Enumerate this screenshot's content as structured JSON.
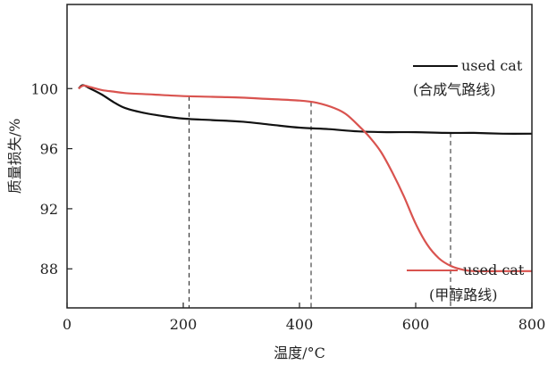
{
  "chart_data": {
    "type": "line",
    "xlabel": "温度/°C",
    "ylabel": "质量损失/%",
    "xlim": [
      0,
      800
    ],
    "ylim": [
      85.4,
      105.6
    ],
    "x_ticks": [
      0,
      200,
      400,
      600,
      800
    ],
    "y_ticks": [
      88,
      92,
      96,
      100
    ],
    "grid": false,
    "legend_position": "right",
    "series": [
      {
        "name": "used cat (合成气路线)",
        "color": "#111111",
        "x": [
          20,
          25,
          30,
          40,
          60,
          80,
          100,
          130,
          160,
          200,
          250,
          300,
          350,
          400,
          450,
          500,
          550,
          600,
          650,
          700,
          750,
          800
        ],
        "y": [
          100.0,
          100.2,
          100.2,
          100.0,
          99.6,
          99.1,
          98.7,
          98.4,
          98.2,
          98.0,
          97.9,
          97.8,
          97.6,
          97.4,
          97.3,
          97.15,
          97.1,
          97.1,
          97.05,
          97.05,
          97.0,
          97.0
        ]
      },
      {
        "name": "used cat (甲醇路线)",
        "color": "#d9534f",
        "x": [
          20,
          25,
          30,
          40,
          60,
          80,
          100,
          150,
          200,
          250,
          300,
          350,
          400,
          430,
          460,
          480,
          500,
          520,
          540,
          560,
          580,
          600,
          620,
          640,
          660,
          680,
          700,
          750,
          800
        ],
        "y": [
          100.0,
          100.15,
          100.2,
          100.1,
          99.9,
          99.8,
          99.7,
          99.6,
          99.5,
          99.45,
          99.4,
          99.3,
          99.2,
          99.05,
          98.7,
          98.3,
          97.6,
          96.8,
          95.8,
          94.4,
          92.8,
          91.0,
          89.6,
          88.7,
          88.2,
          87.95,
          87.85,
          87.85,
          87.85
        ]
      }
    ],
    "legend": [
      {
        "line1": "used cat",
        "line2": "(合成气路线)"
      },
      {
        "line1": "used cat",
        "line2": "(甲醇路线)"
      }
    ],
    "reference_lines_x": [
      210,
      420,
      660
    ]
  }
}
